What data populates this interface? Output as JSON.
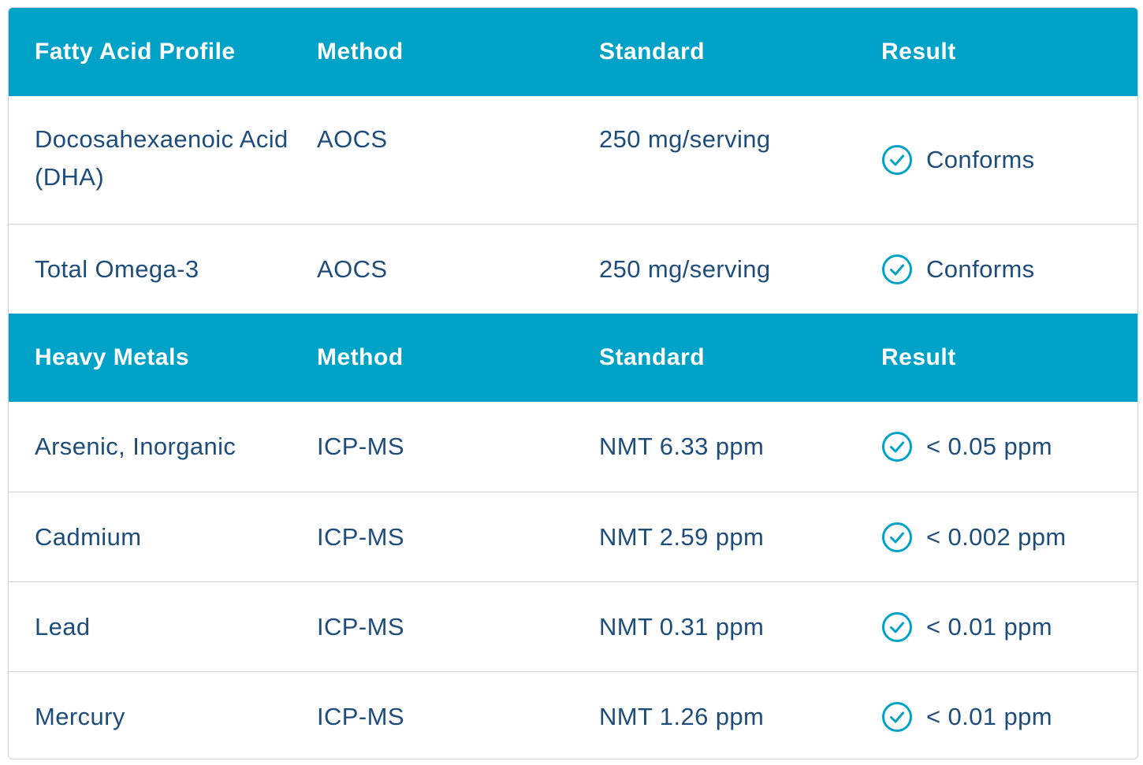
{
  "sections": [
    {
      "header": {
        "name": "Fatty Acid Profile",
        "method": "Method",
        "standard": "Standard",
        "result": "Result"
      },
      "rows": [
        {
          "name": "Docosahexaenoic Acid (DHA)",
          "method": "AOCS",
          "standard": "250 mg/serving",
          "result": "Conforms"
        },
        {
          "name": "Total Omega-3",
          "method": "AOCS",
          "standard": "250 mg/serving",
          "result": "Conforms"
        }
      ]
    },
    {
      "header": {
        "name": "Heavy Metals",
        "method": "Method",
        "standard": "Standard",
        "result": "Result"
      },
      "rows": [
        {
          "name": "Arsenic, Inorganic",
          "method": "ICP-MS",
          "standard": "NMT 6.33 ppm",
          "result": "< 0.05 ppm"
        },
        {
          "name": "Cadmium",
          "method": "ICP-MS",
          "standard": "NMT 2.59 ppm",
          "result": "< 0.002 ppm"
        },
        {
          "name": "Lead",
          "method": "ICP-MS",
          "standard": "NMT 0.31 ppm",
          "result": "< 0.01 ppm"
        },
        {
          "name": "Mercury",
          "method": "ICP-MS",
          "standard": "NMT 1.26 ppm",
          "result": "< 0.01 ppm"
        }
      ]
    }
  ],
  "icons": {
    "result": "check-circle-icon"
  },
  "colors": {
    "header_bg": "#00a2c7",
    "text": "#1e4d7b",
    "icon": "#00a2c7",
    "divider": "#c9d2da"
  }
}
